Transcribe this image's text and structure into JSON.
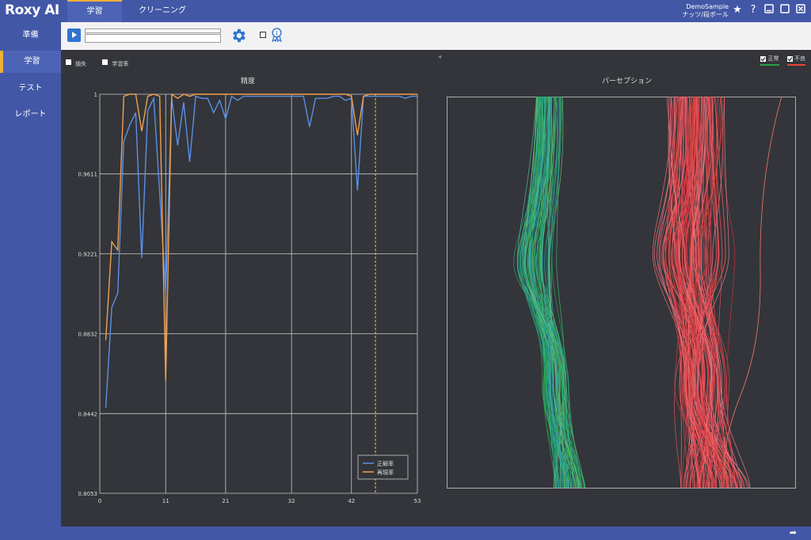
{
  "app": {
    "logo": "Roxy AI"
  },
  "tabs": [
    {
      "label": "学習",
      "active": true
    },
    {
      "label": "クリーニング",
      "active": false
    }
  ],
  "user": {
    "project": "DemoSample",
    "subtitle": "ナッツ/段ボール"
  },
  "nav": [
    {
      "label": "準備",
      "active": false
    },
    {
      "label": "学習",
      "active": true
    },
    {
      "label": "テスト",
      "active": false
    },
    {
      "label": "レポート",
      "active": false
    }
  ],
  "toolbar": {
    "play_icon": "play-icon",
    "settings_icon": "gear-icon",
    "award_icon": "award-icon"
  },
  "options": {
    "loss_label": "損失",
    "lr_label": "学習率"
  },
  "perception_legend": {
    "normal": "正常",
    "defect": "不良",
    "normal_color": "#2aa04a",
    "defect_color": "#e8453c"
  },
  "colors": {
    "accent": "#f0b03a",
    "brand": "#4257a6",
    "precision": "#5b8fe6",
    "recall": "#f0a050"
  },
  "chart_data": [
    {
      "type": "line",
      "title": "精度",
      "xlim": [
        0,
        53
      ],
      "ylim": [
        0.8053,
        1
      ],
      "xticks": [
        0,
        11,
        21,
        32,
        42,
        53
      ],
      "yticks": [
        0.8053,
        0.8442,
        0.8832,
        0.9221,
        0.9611,
        1
      ],
      "ytick_labels": [
        "0.8053",
        "0.8442",
        "0.8832",
        "0.9221",
        "0.9611",
        "1"
      ],
      "marker_x": 46,
      "legend_position": "bottom-right",
      "series": [
        {
          "name": "正解率",
          "color": "#5b8fe6",
          "x": [
            1,
            2,
            3,
            4,
            5,
            6,
            7,
            8,
            9,
            10,
            11,
            12,
            13,
            14,
            15,
            16,
            17,
            18,
            19,
            20,
            21,
            22,
            23,
            24,
            25,
            26,
            27,
            28,
            29,
            30,
            31,
            32,
            33,
            34,
            35,
            36,
            37,
            38,
            39,
            40,
            41,
            42,
            43,
            44,
            45,
            46,
            47,
            48,
            49,
            50,
            51,
            52,
            53
          ],
          "values": [
            0.847,
            0.896,
            0.903,
            0.977,
            0.985,
            0.991,
            0.92,
            0.992,
            0.998,
            0.952,
            0.903,
            0.998,
            0.975,
            0.996,
            0.967,
            0.999,
            0.998,
            0.998,
            0.991,
            0.997,
            0.988,
            0.999,
            0.997,
            0.999,
            0.999,
            0.999,
            0.999,
            0.999,
            0.999,
            0.999,
            0.999,
            0.999,
            0.999,
            0.999,
            0.984,
            0.998,
            0.998,
            0.998,
            0.999,
            0.999,
            0.997,
            0.998,
            0.953,
            0.999,
            0.999,
            0.999,
            0.999,
            0.999,
            0.999,
            0.999,
            0.998,
            0.999,
            0.999
          ]
        },
        {
          "name": "再現率",
          "color": "#f0a050",
          "x": [
            1,
            2,
            3,
            4,
            5,
            6,
            7,
            8,
            9,
            10,
            11,
            12,
            13,
            14,
            15,
            16,
            17,
            18,
            19,
            20,
            21,
            22,
            23,
            24,
            25,
            26,
            27,
            28,
            29,
            30,
            31,
            32,
            33,
            34,
            35,
            36,
            37,
            38,
            39,
            40,
            41,
            42,
            43,
            44,
            45,
            46,
            47,
            48,
            49,
            50,
            51,
            52,
            53
          ],
          "values": [
            0.88,
            0.928,
            0.924,
            0.999,
            1.0,
            1.0,
            0.982,
            0.999,
            1.0,
            0.999,
            0.86,
            1.0,
            0.998,
            1.0,
            0.999,
            1.0,
            1.0,
            1.0,
            1.0,
            1.0,
            1.0,
            1.0,
            1.0,
            1.0,
            1.0,
            1.0,
            1.0,
            1.0,
            1.0,
            1.0,
            1.0,
            1.0,
            1.0,
            1.0,
            1.0,
            1.0,
            1.0,
            1.0,
            1.0,
            1.0,
            1.0,
            0.999,
            0.98,
            0.999,
            1.0,
            1.0,
            1.0,
            1.0,
            1.0,
            1.0,
            1.0,
            1.0,
            1.0
          ]
        }
      ]
    },
    {
      "type": "line",
      "title": "パーセプション",
      "series": [
        {
          "name": "正常",
          "color": "#2aa04a"
        },
        {
          "name": "不良",
          "color": "#e8453c"
        }
      ]
    }
  ]
}
